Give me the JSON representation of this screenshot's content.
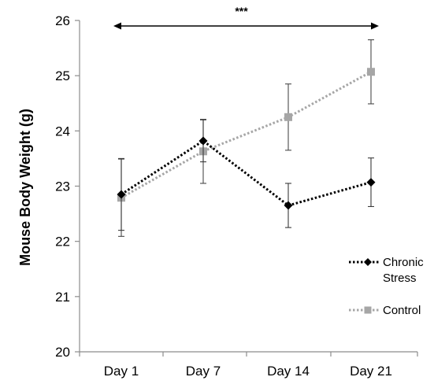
{
  "chart_data": {
    "type": "line",
    "title": "",
    "xlabel": "",
    "ylabel": "Mouse Body Weight (g)",
    "categories": [
      "Day 1",
      "Day 7",
      "Day 14",
      "Day 21"
    ],
    "ylim": [
      20,
      26
    ],
    "yticks": [
      20,
      21,
      22,
      23,
      24,
      25,
      26
    ],
    "grid": false,
    "legend_position": "right",
    "series": [
      {
        "name": "Chronic Stress",
        "color": "#000000",
        "marker": "diamond",
        "line_style": "dotted",
        "values": [
          22.85,
          23.82,
          22.65,
          23.07
        ],
        "error": [
          0.65,
          0.38,
          0.4,
          0.44
        ]
      },
      {
        "name": "Control",
        "color": "#a6a6a6",
        "marker": "square",
        "line_style": "dotted",
        "values": [
          22.79,
          23.63,
          24.25,
          25.07
        ],
        "error": [
          0.7,
          0.58,
          0.6,
          0.58
        ]
      }
    ],
    "annotations": [
      {
        "text": "***",
        "type": "double-arrow",
        "from": "Day 1",
        "to": "Day 21"
      }
    ]
  }
}
